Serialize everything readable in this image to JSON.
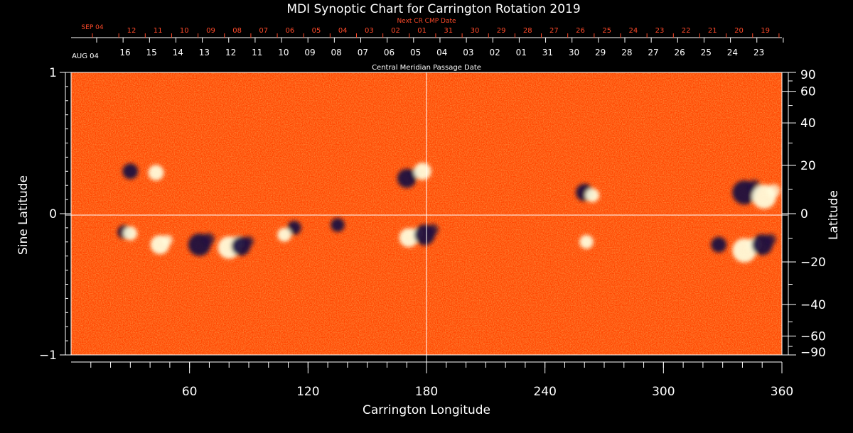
{
  "chart_data": {
    "type": "heatmap",
    "title": "MDI Synoptic Chart for Carrington Rotation 2019",
    "xlabel": "Carrington Longitude",
    "ylabel_left": "Sine Latitude",
    "ylabel_right": "Latitude",
    "xlim": [
      0,
      360
    ],
    "ylim": [
      -1,
      1
    ],
    "x_ticks": [
      "60",
      "120",
      "180",
      "240",
      "300",
      "360"
    ],
    "y_left_ticks": [
      "1",
      "0",
      "−1"
    ],
    "y_right_ticks": [
      "90",
      "60",
      "40",
      "20",
      "0",
      "−20",
      "−40",
      "−60",
      "−90"
    ],
    "next_cr_label": "Next CR CMP Date",
    "next_cr_start": "SEP 04",
    "next_cr_dates": [
      "12",
      "11",
      "10",
      "09",
      "08",
      "07",
      "06",
      "05",
      "04",
      "03",
      "02",
      "01",
      "31",
      "30",
      "29",
      "28",
      "27",
      "26",
      "25",
      "24",
      "23",
      "22",
      "21",
      "20",
      "19"
    ],
    "cmp_label": "Central Meridian Passage Date",
    "cmp_start": "AUG 04",
    "cmp_dates": [
      "16",
      "15",
      "14",
      "13",
      "12",
      "11",
      "10",
      "09",
      "08",
      "07",
      "06",
      "05",
      "04",
      "03",
      "02",
      "01",
      "31",
      "30",
      "29",
      "28",
      "27",
      "26",
      "25",
      "24",
      "23"
    ],
    "colors": {
      "background": "#ff4500",
      "positive": "#ffffe0",
      "negative": "#1a1040",
      "grid": "#ffffff",
      "next_cr": "#ff4a2a"
    },
    "active_regions": [
      {
        "lon": 30,
        "sinlat": 0.3,
        "polarity": "negative",
        "strength": 0.5
      },
      {
        "lon": 43,
        "sinlat": 0.29,
        "polarity": "positive",
        "strength": 0.5
      },
      {
        "lon": 170,
        "sinlat": 0.25,
        "polarity": "negative",
        "strength": 0.7
      },
      {
        "lon": 178,
        "sinlat": 0.3,
        "polarity": "positive",
        "strength": 0.6
      },
      {
        "lon": 260,
        "sinlat": 0.15,
        "polarity": "negative",
        "strength": 0.6
      },
      {
        "lon": 264,
        "sinlat": 0.13,
        "polarity": "positive",
        "strength": 0.4
      },
      {
        "lon": 341,
        "sinlat": 0.15,
        "polarity": "negative",
        "strength": 1.0
      },
      {
        "lon": 351,
        "sinlat": 0.12,
        "polarity": "positive",
        "strength": 1.0
      },
      {
        "lon": 27,
        "sinlat": -0.13,
        "polarity": "negative",
        "strength": 0.4
      },
      {
        "lon": 30,
        "sinlat": -0.14,
        "polarity": "positive",
        "strength": 0.4
      },
      {
        "lon": 45,
        "sinlat": -0.22,
        "polarity": "positive",
        "strength": 0.7
      },
      {
        "lon": 65,
        "sinlat": -0.22,
        "polarity": "negative",
        "strength": 0.9
      },
      {
        "lon": 80,
        "sinlat": -0.24,
        "polarity": "positive",
        "strength": 0.9
      },
      {
        "lon": 86,
        "sinlat": -0.23,
        "polarity": "negative",
        "strength": 0.7
      },
      {
        "lon": 113,
        "sinlat": -0.1,
        "polarity": "negative",
        "strength": 0.4
      },
      {
        "lon": 108,
        "sinlat": -0.15,
        "polarity": "positive",
        "strength": 0.4
      },
      {
        "lon": 135,
        "sinlat": -0.08,
        "polarity": "negative",
        "strength": 0.4
      },
      {
        "lon": 171,
        "sinlat": -0.17,
        "polarity": "positive",
        "strength": 0.7
      },
      {
        "lon": 179,
        "sinlat": -0.15,
        "polarity": "negative",
        "strength": 0.8
      },
      {
        "lon": 261,
        "sinlat": -0.2,
        "polarity": "positive",
        "strength": 0.4
      },
      {
        "lon": 328,
        "sinlat": -0.22,
        "polarity": "negative",
        "strength": 0.5
      },
      {
        "lon": 341,
        "sinlat": -0.26,
        "polarity": "positive",
        "strength": 1.0
      },
      {
        "lon": 350,
        "sinlat": -0.22,
        "polarity": "negative",
        "strength": 0.8
      }
    ]
  }
}
